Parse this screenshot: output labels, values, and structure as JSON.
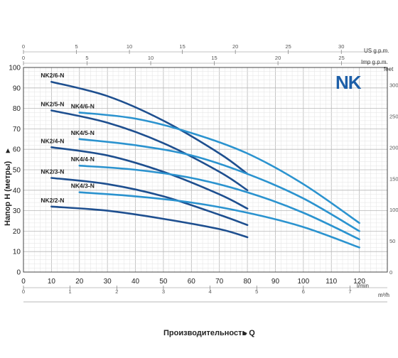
{
  "brand": {
    "logo_text": "NK",
    "color": "#1d5fa8"
  },
  "colors": {
    "dark_series": "#1e4f8f",
    "light_series": "#2b93cf",
    "grid_minor": "#e3e3e3",
    "grid_major": "#b8b8b8",
    "frame": "#444444"
  },
  "axes": {
    "y_title": "Напор H (метры)",
    "x_title": "Производительность Q",
    "x_title_arrow": "▸",
    "y_title_arrow": "▸",
    "bottom_unit_lmin": "l/min",
    "bottom_unit_m3h": "m³/h",
    "top_unit_usgpm": "US g.p.m.",
    "top_unit_impgpm": "Imp g.p.m.",
    "right_unit_feet": "feet"
  },
  "chart_data": {
    "type": "line",
    "x_label": "Производительность Q",
    "y_label": "Напор H (метры)",
    "xlim": [
      0,
      130
    ],
    "ylim": [
      0,
      100
    ],
    "x_ticks": [
      0,
      10,
      20,
      30,
      40,
      50,
      60,
      70,
      80,
      90,
      100,
      110,
      120
    ],
    "y_ticks": [
      0,
      10,
      20,
      30,
      40,
      50,
      60,
      70,
      80,
      90,
      100
    ],
    "x_tick_labels": [
      "0",
      "10",
      "20",
      "30",
      "40",
      "50",
      "60",
      "70",
      "80",
      "90",
      "100",
      "110",
      "120"
    ],
    "y_tick_labels": [
      "0",
      "10",
      "20",
      "30",
      "40",
      "50",
      "60",
      "70",
      "80",
      "90",
      "100"
    ],
    "m3h_ticks": [
      "0",
      "1",
      "2",
      "3",
      "4",
      "5",
      "6",
      "7"
    ],
    "usgpm_ticks": [
      "0",
      "5",
      "10",
      "15",
      "20",
      "25",
      "30"
    ],
    "impgpm_ticks": [
      "0",
      "5",
      "10",
      "15",
      "20",
      "25"
    ],
    "feet_ticks": [
      "0",
      "50",
      "100",
      "150",
      "200",
      "250",
      "300"
    ],
    "grid": true,
    "series": [
      {
        "name": "NK2/6-N",
        "group": "dark",
        "x": [
          10,
          30,
          50,
          70,
          80
        ],
        "y": [
          93,
          86,
          74,
          58,
          48
        ]
      },
      {
        "name": "NK2/5-N",
        "group": "dark",
        "x": [
          10,
          30,
          50,
          70,
          80
        ],
        "y": [
          79,
          73,
          63,
          49,
          40
        ]
      },
      {
        "name": "NK2/4-N",
        "group": "dark",
        "x": [
          10,
          30,
          50,
          70,
          80
        ],
        "y": [
          61,
          57,
          49,
          38,
          31
        ]
      },
      {
        "name": "NK2/3-N",
        "group": "dark",
        "x": [
          10,
          30,
          50,
          70,
          80
        ],
        "y": [
          46,
          43,
          37,
          28,
          23
        ]
      },
      {
        "name": "NK2/2-N",
        "group": "dark",
        "x": [
          10,
          30,
          50,
          70,
          80
        ],
        "y": [
          32,
          30,
          26,
          21,
          17
        ]
      },
      {
        "name": "NK4/6-N",
        "group": "light",
        "x": [
          20,
          40,
          60,
          80,
          100,
          120
        ],
        "y": [
          78,
          75,
          68,
          58,
          43,
          24
        ]
      },
      {
        "name": "NK4/5-N",
        "group": "light",
        "x": [
          20,
          40,
          60,
          80,
          100,
          120
        ],
        "y": [
          65,
          62,
          57,
          48,
          36,
          20
        ]
      },
      {
        "name": "NK4/4-N",
        "group": "light",
        "x": [
          20,
          40,
          60,
          80,
          100,
          120
        ],
        "y": [
          52,
          50,
          46,
          39,
          29,
          16
        ]
      },
      {
        "name": "NK4/3-N",
        "group": "light",
        "x": [
          20,
          40,
          60,
          80,
          100,
          120
        ],
        "y": [
          39,
          37,
          34,
          29,
          22,
          12
        ]
      }
    ]
  }
}
